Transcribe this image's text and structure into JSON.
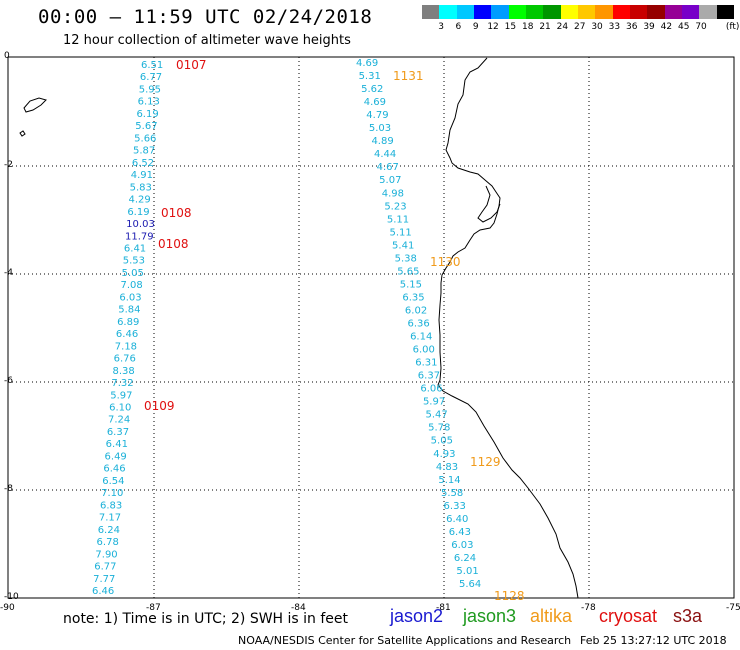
{
  "title": "00:00 – 11:59 UTC 02/24/2018",
  "subtitle": "12 hour collection of altimeter wave heights",
  "scale": {
    "units": "(ft)",
    "colors": [
      "#7f7f7f",
      "#00ffff",
      "#00c8ff",
      "#0000ff",
      "#009cff",
      "#00ff00",
      "#00c800",
      "#009600",
      "#ffff00",
      "#ffc800",
      "#ff9600",
      "#ff0000",
      "#c80000",
      "#960000",
      "#960096",
      "#7800c8",
      "#aaaaaa",
      "#000000"
    ],
    "labels": [
      "3",
      "6",
      "9",
      "12",
      "15",
      "18",
      "21",
      "24",
      "27",
      "30",
      "33",
      "36",
      "39",
      "42",
      "45",
      "70"
    ]
  },
  "axes": {
    "lat_ticks": [
      "0",
      "-2",
      "-4",
      "-6",
      "-8",
      "-10"
    ],
    "lon_ticks": [
      "-90",
      "-87",
      "-84",
      "-81",
      "-78",
      "-75"
    ]
  },
  "passes": [
    {
      "label": "0107",
      "satellite": "cryosat",
      "color": "#e01010"
    },
    {
      "label": "0108",
      "satellite": "cryosat",
      "color": "#e01010"
    },
    {
      "label": "0108",
      "satellite": "cryosat",
      "color": "#e01010"
    },
    {
      "label": "0109",
      "satellite": "cryosat",
      "color": "#e01010"
    },
    {
      "label": "1131",
      "satellite": "altika",
      "color": "#f09a1a"
    },
    {
      "label": "1130",
      "satellite": "altika",
      "color": "#f09a1a"
    },
    {
      "label": "1129",
      "satellite": "altika",
      "color": "#f09a1a"
    },
    {
      "label": "1128",
      "satellite": "altika",
      "color": "#f09a1a"
    }
  ],
  "west_track_values": [
    "6.51",
    "6.77",
    "5.95",
    "6.13",
    "6.19",
    "5.67",
    "5.66",
    "5.87",
    "6.52",
    "4.91",
    "5.83",
    "4.29",
    "6.19",
    "10.03",
    "11.79",
    "6.41",
    "5.53",
    "5.05",
    "7.08",
    "6.03",
    "5.84",
    "6.89",
    "6.46",
    "7.18",
    "6.76",
    "8.38",
    "7.32",
    "5.97",
    "6.10",
    "7.24",
    "6.37",
    "6.41",
    "6.49",
    "6.46",
    "6.54",
    "7.10",
    "6.83",
    "7.17",
    "6.24",
    "6.78",
    "7.90",
    "6.77",
    "7.77",
    "6.46"
  ],
  "east_track_values": [
    "4.69",
    "5.31",
    "5.62",
    "4.69",
    "4.79",
    "5.03",
    "4.89",
    "4.44",
    "4.67",
    "5.07",
    "4.98",
    "5.23",
    "5.11",
    "5.11",
    "5.41",
    "5.38",
    "5.65",
    "5.15",
    "6.35",
    "6.02",
    "6.36",
    "6.14",
    "6.00",
    "6.31",
    "6.37",
    "6.06",
    "5.97",
    "5.47",
    "5.78",
    "5.05",
    "4.93",
    "4.83",
    "5.14",
    "5.58",
    "6.33",
    "6.40",
    "6.43",
    "6.03",
    "6.24",
    "5.01",
    "5.64"
  ],
  "note": "note: 1) Time is in UTC; 2) SWH is in feet",
  "legend": [
    {
      "label": "jason2",
      "color": "#1a1ad0"
    },
    {
      "label": "jason3",
      "color": "#1f9a1f"
    },
    {
      "label": "altika",
      "color": "#f09a1a"
    },
    {
      "label": "cryosat",
      "color": "#e01010"
    },
    {
      "label": "s3a",
      "color": "#8a1010"
    }
  ],
  "credit": "NOAA/NESDIS Center for Satellite Applications and Research",
  "generated": "Feb 25 13:27:12 UTC 2018"
}
